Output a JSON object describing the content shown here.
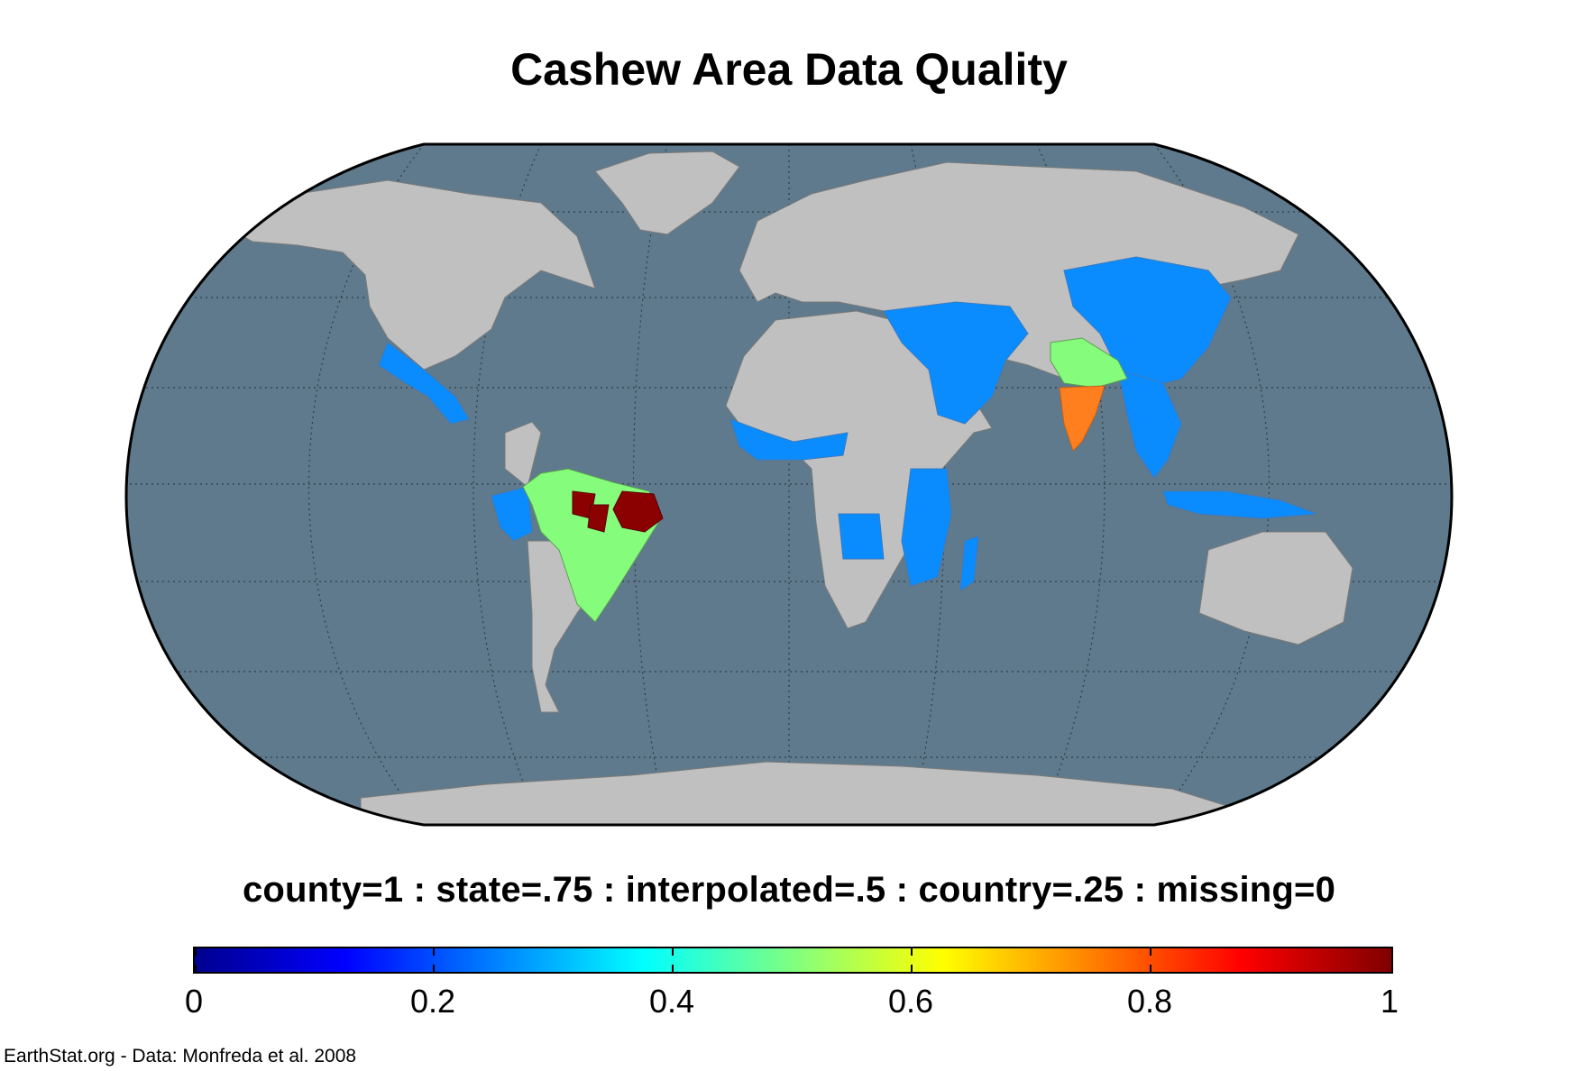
{
  "title": "Cashew Area Data Quality",
  "legend": {
    "caption": "county=1 : state=.75 : interpolated=.5 : country=.25 : missing=0",
    "colorbar": {
      "range": [
        0,
        1
      ],
      "ticks": [
        "0",
        "0.2",
        "0.4",
        "0.6",
        "0.8",
        "1"
      ],
      "colormap": "jet"
    }
  },
  "credit": "EarthStat.org - Data: Monfreda et al. 2008",
  "colors": {
    "ocean": "#5f7a8c",
    "land_no_data": "#c0c0c0",
    "country": "#0a8cff",
    "interpolated": "#86fc7c",
    "state": "#ff7f1e",
    "county": "#8b0000"
  },
  "map": {
    "projection": "Robinson",
    "graticule": true,
    "regions": [
      {
        "name": "Mexico",
        "quality": 0.25
      },
      {
        "name": "Central America",
        "quality": 0.25
      },
      {
        "name": "Caribbean",
        "quality": 0.25
      },
      {
        "name": "Brazil",
        "quality": 0.5
      },
      {
        "name": "Northeast Brazil",
        "quality": 1
      },
      {
        "name": "Peru",
        "quality": 0.25
      },
      {
        "name": "West Africa",
        "quality": 0.25
      },
      {
        "name": "Angola",
        "quality": 0.25
      },
      {
        "name": "Kenya",
        "quality": 0.25
      },
      {
        "name": "Tanzania",
        "quality": 0.25
      },
      {
        "name": "Mozambique",
        "quality": 0.25
      },
      {
        "name": "Madagascar",
        "quality": 0.25
      },
      {
        "name": "Turkey",
        "quality": 0.25
      },
      {
        "name": "Middle East",
        "quality": 0.25
      },
      {
        "name": "Iran",
        "quality": 0.25
      },
      {
        "name": "Afghanistan",
        "quality": 0.25
      },
      {
        "name": "Pakistan",
        "quality": 0.25
      },
      {
        "name": "China",
        "quality": 0.25
      },
      {
        "name": "North India",
        "quality": 0.5
      },
      {
        "name": "South India",
        "quality": 0.75
      },
      {
        "name": "Southeast Asia",
        "quality": 0.25
      },
      {
        "name": "Philippines",
        "quality": 0.25
      },
      {
        "name": "Indonesia",
        "quality": 0.25
      },
      {
        "name": "Sri Lanka",
        "quality": 0.25
      }
    ]
  }
}
